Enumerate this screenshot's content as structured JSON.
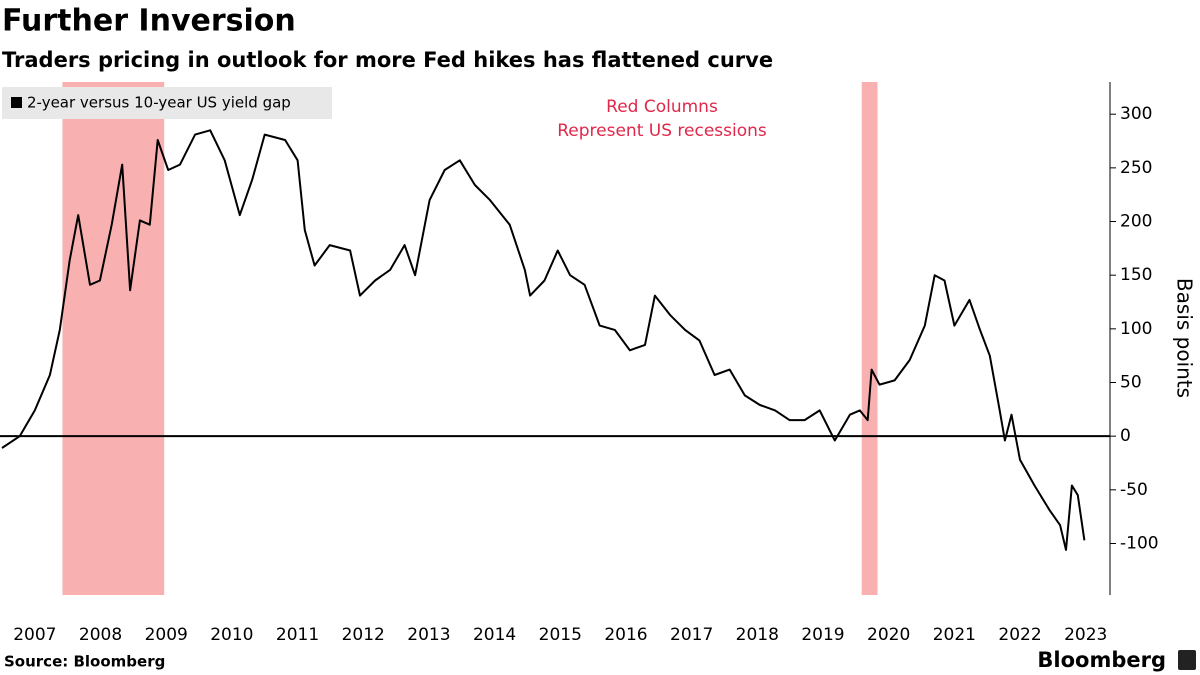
{
  "chart_data": {
    "type": "line",
    "title": "Further Inversion",
    "subtitle": "Traders pricing in outlook for more Fed hikes has flattened curve",
    "annotation": [
      "Red Columns",
      "Represent US recessions"
    ],
    "ylabel": "Basis points",
    "source": "Source: Bloomberg",
    "brand": "Bloomberg",
    "x": [
      2007.0,
      2007.27,
      2007.5,
      2007.73,
      2007.88,
      2008.03,
      2008.16,
      2008.34,
      2008.49,
      2008.67,
      2008.83,
      2008.95,
      2009.1,
      2009.25,
      2009.37,
      2009.53,
      2009.71,
      2009.94,
      2010.17,
      2010.39,
      2010.62,
      2010.81,
      2011.0,
      2011.31,
      2011.5,
      2011.61,
      2011.76,
      2011.99,
      2012.3,
      2012.45,
      2012.68,
      2012.91,
      2013.13,
      2013.29,
      2013.51,
      2013.74,
      2013.97,
      2014.2,
      2014.43,
      2014.73,
      2014.96,
      2015.04,
      2015.26,
      2015.46,
      2015.65,
      2015.87,
      2016.1,
      2016.33,
      2016.56,
      2016.79,
      2016.94,
      2017.17,
      2017.4,
      2017.62,
      2017.85,
      2018.08,
      2018.31,
      2018.54,
      2018.77,
      2018.99,
      2019.22,
      2019.45,
      2019.68,
      2019.91,
      2020.06,
      2020.18,
      2020.24,
      2020.36,
      2020.59,
      2020.82,
      2021.05,
      2021.2,
      2021.35,
      2021.5,
      2021.73,
      2021.89,
      2022.04,
      2022.19,
      2022.27,
      2022.37,
      2022.5,
      2022.72,
      2022.95,
      2023.11,
      2023.2,
      2023.29,
      2023.38,
      2023.48
    ],
    "series": [
      {
        "name": "2-year versus 10-year US yield gap",
        "color": "#000000",
        "values": [
          -11,
          0,
          24,
          57,
          99,
          164,
          206,
          141,
          145,
          197,
          253,
          136,
          201,
          197,
          276,
          248,
          253,
          281,
          285,
          257,
          206,
          239,
          281,
          276,
          257,
          192,
          159,
          178,
          173,
          131,
          145,
          155,
          178,
          150,
          220,
          248,
          257,
          234,
          220,
          197,
          155,
          131,
          145,
          173,
          150,
          141,
          103,
          99,
          80,
          85,
          131,
          113,
          99,
          89,
          57,
          62,
          38,
          29,
          24,
          15,
          15,
          24,
          -4,
          20,
          24,
          15,
          62,
          48,
          52,
          71,
          103,
          150,
          145,
          103,
          127,
          99,
          75,
          24,
          -4,
          20,
          -22,
          -46,
          -69,
          -83,
          -106,
          -46,
          -55,
          -97
        ]
      }
    ],
    "recessions": [
      {
        "start": 2007.92,
        "end": 2009.47
      },
      {
        "start": 2020.09,
        "end": 2020.33
      }
    ],
    "recession_color": "#f8b0b0",
    "reference_line": 0,
    "xlim": [
      2007,
      2023.55
    ],
    "xticks": [
      {
        "value": 2007.5,
        "label": "2007"
      },
      {
        "value": 2008.5,
        "label": "2008"
      },
      {
        "value": 2009.5,
        "label": "2009"
      },
      {
        "value": 2010.5,
        "label": "2010"
      },
      {
        "value": 2011.5,
        "label": "2011"
      },
      {
        "value": 2012.5,
        "label": "2012"
      },
      {
        "value": 2013.5,
        "label": "2013"
      },
      {
        "value": 2014.5,
        "label": "2014"
      },
      {
        "value": 2015.5,
        "label": "2015"
      },
      {
        "value": 2016.5,
        "label": "2016"
      },
      {
        "value": 2017.5,
        "label": "2017"
      },
      {
        "value": 2018.5,
        "label": "2018"
      },
      {
        "value": 2019.5,
        "label": "2019"
      },
      {
        "value": 2020.5,
        "label": "2020"
      },
      {
        "value": 2021.5,
        "label": "2021"
      },
      {
        "value": 2022.5,
        "label": "2022"
      },
      {
        "value": 2023.5,
        "label": "2023"
      }
    ],
    "ylim": [
      -148,
      330
    ],
    "yticks": [
      -100,
      -50,
      0,
      50,
      100,
      150,
      200,
      250,
      300
    ]
  }
}
